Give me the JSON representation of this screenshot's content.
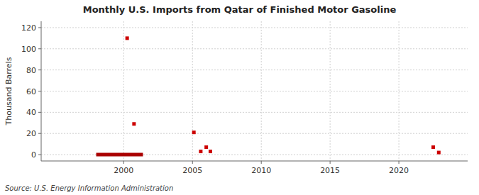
{
  "chart_data": {
    "type": "scatter",
    "title": "Monthly U.S. Imports from Qatar of Finished Motor Gasoline",
    "ylabel": "Thousand Barrels",
    "annotations": [
      "Source: U.S. Energy Information Administration"
    ],
    "xlim": [
      1994,
      2025
    ],
    "xticks": [
      2000,
      2005,
      2010,
      2015,
      2020
    ],
    "ylim": [
      -6,
      126
    ],
    "yticks": [
      0,
      20,
      40,
      60,
      80,
      100,
      120
    ],
    "grid": true,
    "series": [
      {
        "type": "scatter",
        "color": "#cc0000",
        "marker": "square",
        "x": [
          2000.25,
          2000.75,
          2005.1,
          2005.6,
          2006.0,
          2006.3,
          2022.5,
          2022.9
        ],
        "values": [
          110,
          29,
          21,
          3,
          7,
          3,
          7,
          2
        ]
      },
      {
        "type": "line",
        "color": "#aa0000",
        "line_style": "solid",
        "x": [
          1998.0,
          2001.4
        ],
        "values": [
          0,
          0
        ]
      }
    ]
  }
}
